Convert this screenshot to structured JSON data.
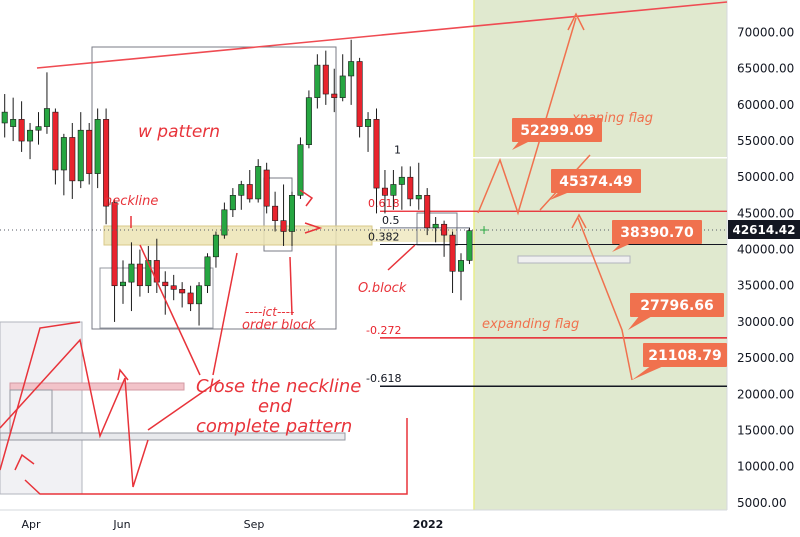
{
  "chart_data": {
    "type": "candlestick",
    "x_ticks": [
      "Apr",
      "Jun",
      "Sep",
      "2022"
    ],
    "y_ticks": [
      5000,
      10000,
      15000,
      20000,
      25000,
      30000,
      35000,
      40000,
      45000,
      50000,
      55000,
      60000,
      65000,
      70000
    ],
    "y_range": [
      4000,
      74500
    ],
    "current_price": "42614.42",
    "candles": [
      {
        "o": 57500,
        "h": 61500,
        "l": 55500,
        "c": 59000
      },
      {
        "o": 57000,
        "h": 61000,
        "l": 55000,
        "c": 58000
      },
      {
        "o": 58000,
        "h": 60500,
        "l": 53500,
        "c": 55000
      },
      {
        "o": 55000,
        "h": 57500,
        "l": 52500,
        "c": 56500
      },
      {
        "o": 56500,
        "h": 59000,
        "l": 54500,
        "c": 57000
      },
      {
        "o": 57000,
        "h": 64500,
        "l": 56000,
        "c": 59500
      },
      {
        "o": 59000,
        "h": 59500,
        "l": 49000,
        "c": 51000
      },
      {
        "o": 51000,
        "h": 56000,
        "l": 47500,
        "c": 55500
      },
      {
        "o": 55500,
        "h": 57500,
        "l": 47000,
        "c": 49500
      },
      {
        "o": 49500,
        "h": 59000,
        "l": 48500,
        "c": 56500
      },
      {
        "o": 56500,
        "h": 57500,
        "l": 49000,
        "c": 50500
      },
      {
        "o": 50500,
        "h": 59500,
        "l": 48500,
        "c": 58000
      },
      {
        "o": 58000,
        "h": 59500,
        "l": 43500,
        "c": 46000
      },
      {
        "o": 46500,
        "h": 47000,
        "l": 30000,
        "c": 35000
      },
      {
        "o": 35000,
        "h": 38500,
        "l": 32500,
        "c": 35500
      },
      {
        "o": 35500,
        "h": 41000,
        "l": 31500,
        "c": 38000
      },
      {
        "o": 38000,
        "h": 40000,
        "l": 33500,
        "c": 35000
      },
      {
        "o": 35000,
        "h": 40500,
        "l": 34000,
        "c": 38500
      },
      {
        "o": 38500,
        "h": 41500,
        "l": 34000,
        "c": 35500
      },
      {
        "o": 35500,
        "h": 37000,
        "l": 31000,
        "c": 35000
      },
      {
        "o": 35000,
        "h": 36500,
        "l": 33000,
        "c": 34500
      },
      {
        "o": 34500,
        "h": 35500,
        "l": 32000,
        "c": 34000
      },
      {
        "o": 34000,
        "h": 35000,
        "l": 31500,
        "c": 32500
      },
      {
        "o": 32500,
        "h": 35500,
        "l": 29500,
        "c": 35000
      },
      {
        "o": 35000,
        "h": 39500,
        "l": 34000,
        "c": 39000
      },
      {
        "o": 39000,
        "h": 42500,
        "l": 37500,
        "c": 42000
      },
      {
        "o": 42000,
        "h": 46500,
        "l": 41500,
        "c": 45500
      },
      {
        "o": 45500,
        "h": 48500,
        "l": 44500,
        "c": 47500
      },
      {
        "o": 47500,
        "h": 49500,
        "l": 45500,
        "c": 49000
      },
      {
        "o": 49000,
        "h": 51000,
        "l": 46500,
        "c": 47000
      },
      {
        "o": 47000,
        "h": 52500,
        "l": 46500,
        "c": 51500
      },
      {
        "o": 51000,
        "h": 52000,
        "l": 45000,
        "c": 46000
      },
      {
        "o": 46000,
        "h": 48000,
        "l": 42500,
        "c": 44000
      },
      {
        "o": 44000,
        "h": 49000,
        "l": 40500,
        "c": 42500
      },
      {
        "o": 42500,
        "h": 48000,
        "l": 40500,
        "c": 47500
      },
      {
        "o": 47500,
        "h": 55500,
        "l": 47000,
        "c": 54500
      },
      {
        "o": 54500,
        "h": 62000,
        "l": 54000,
        "c": 61000
      },
      {
        "o": 61000,
        "h": 67000,
        "l": 59500,
        "c": 65500
      },
      {
        "o": 65500,
        "h": 67500,
        "l": 60000,
        "c": 61500
      },
      {
        "o": 61500,
        "h": 65000,
        "l": 59000,
        "c": 61000
      },
      {
        "o": 61000,
        "h": 67000,
        "l": 60500,
        "c": 64000
      },
      {
        "o": 64000,
        "h": 69000,
        "l": 60000,
        "c": 66000
      },
      {
        "o": 66000,
        "h": 66500,
        "l": 55500,
        "c": 57000
      },
      {
        "o": 57000,
        "h": 59000,
        "l": 53500,
        "c": 58000
      },
      {
        "o": 58000,
        "h": 59500,
        "l": 45000,
        "c": 48500
      },
      {
        "o": 48500,
        "h": 51000,
        "l": 45000,
        "c": 47500
      },
      {
        "o": 47500,
        "h": 51000,
        "l": 45500,
        "c": 49000
      },
      {
        "o": 49000,
        "h": 51500,
        "l": 45500,
        "c": 50000
      },
      {
        "o": 50000,
        "h": 51500,
        "l": 46000,
        "c": 47000
      },
      {
        "o": 47000,
        "h": 52000,
        "l": 45500,
        "c": 47500
      },
      {
        "o": 47500,
        "h": 48500,
        "l": 42000,
        "c": 43000
      },
      {
        "o": 43000,
        "h": 44500,
        "l": 41000,
        "c": 43500
      },
      {
        "o": 43500,
        "h": 44000,
        "l": 39000,
        "c": 42000
      },
      {
        "o": 42000,
        "h": 42500,
        "l": 34000,
        "c": 37000
      },
      {
        "o": 37000,
        "h": 39500,
        "l": 33000,
        "c": 38500
      },
      {
        "o": 38500,
        "h": 43000,
        "l": 38000,
        "c": 42614
      }
    ],
    "fib_levels": [
      {
        "label": "1",
        "value": 52700
      },
      {
        "label": "0.618",
        "value": 45300
      },
      {
        "label": "0.5",
        "value": 43000
      },
      {
        "label": "0.382",
        "value": 40700
      },
      {
        "label": "-0.272",
        "value": 27796.66
      },
      {
        "label": "-0.618",
        "value": 21108.79
      }
    ],
    "price_tags": [
      "52299.09",
      "45374.49",
      "38390.70",
      "27796.66",
      "21108.79"
    ],
    "annotations": {
      "w_pattern": "w pattern",
      "neckline": "neckline",
      "ict_1": "----ict----",
      "ict_2": "order block",
      "oblock": "O.block",
      "close_1": "Close the neckline",
      "close_2": "end",
      "close_3": "complete pattern",
      "expanding_flag": "expanding flag",
      "expanding_flag_top": "xpaning flag"
    },
    "colors": {
      "bull": "#26a641",
      "bear": "#e8232d",
      "annotation_red": "#e8333a",
      "annotation_orange": "#f0714e",
      "tag_orange": "#f0714e",
      "forecast_zone": "#e0e9cf",
      "neckline_zone": "#ece4b4"
    }
  }
}
